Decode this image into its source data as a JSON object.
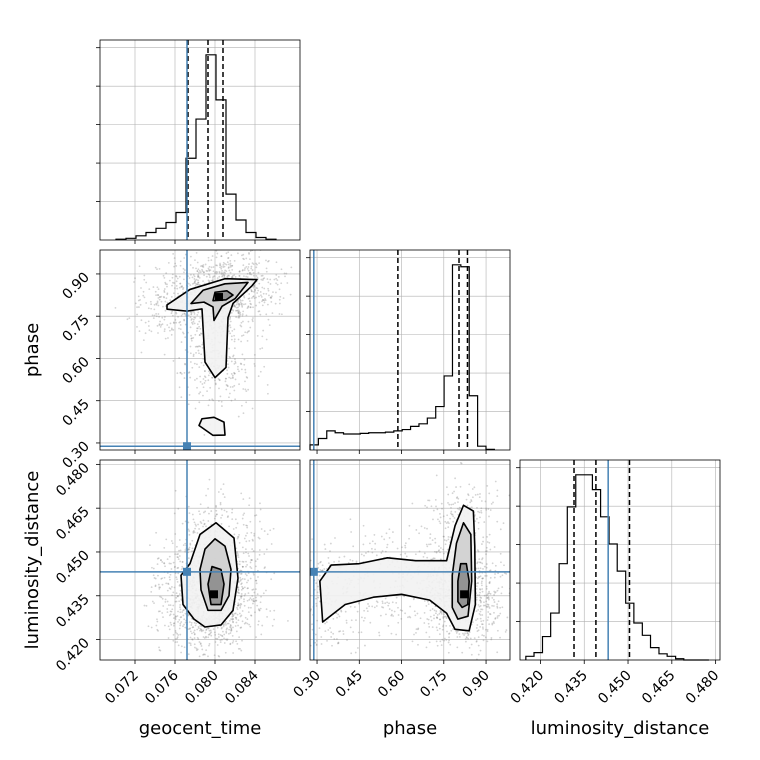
{
  "colors": {
    "truth": "#4682b4",
    "hist": "#000000",
    "grid": "#b0b0b0",
    "scatter": "#808080"
  },
  "chart_data": {
    "type": "corner",
    "grid": true,
    "parameters": [
      {
        "key": "geocent_time",
        "label": "geocent_time",
        "range": [
          0.0685,
          0.0885
        ],
        "ticks": [
          "0.072",
          "0.076",
          "0.080",
          "0.084"
        ],
        "truth": 0.0772,
        "quantiles": [
          0.0773,
          0.0793,
          0.0808
        ]
      },
      {
        "key": "phase",
        "label": "phase",
        "range": [
          0.275,
          0.985
        ],
        "ticks": [
          "0.30",
          "0.45",
          "0.60",
          "0.75",
          "0.90"
        ],
        "truth": 0.2885,
        "quantiles": [
          0.587,
          0.804,
          0.834
        ]
      },
      {
        "key": "luminosity_distance",
        "label": "luminosity_distance",
        "range": [
          0.413,
          0.4815
        ],
        "ticks": [
          "0.420",
          "0.435",
          "0.450",
          "0.465",
          "0.480"
        ],
        "truth": 0.4432,
        "quantiles": [
          0.4315,
          0.439,
          0.4505
        ]
      }
    ],
    "histograms": [
      {
        "param": "geocent_time",
        "edges": [
          0.0701,
          0.0711,
          0.0721,
          0.0731,
          0.0741,
          0.0751,
          0.0761,
          0.0771,
          0.0781,
          0.0791,
          0.0801,
          0.0811,
          0.0821,
          0.0831,
          0.0841,
          0.0851,
          0.0861
        ],
        "counts": [
          1,
          2,
          5,
          9,
          14,
          21,
          33,
          98,
          145,
          222,
          168,
          55,
          24,
          9,
          3,
          1
        ]
      },
      {
        "param": "phase",
        "edges": [
          0.275,
          0.3048,
          0.3345,
          0.3643,
          0.394,
          0.4238,
          0.4535,
          0.4833,
          0.513,
          0.5428,
          0.5725,
          0.6023,
          0.632,
          0.6618,
          0.6915,
          0.7213,
          0.751,
          0.7808,
          0.8105,
          0.8403,
          0.87,
          0.8998,
          0.9295
        ],
        "counts": [
          8,
          18,
          30,
          27,
          25,
          25,
          26,
          27,
          27,
          28,
          30,
          32,
          37,
          41,
          50,
          68,
          116,
          290,
          287,
          85,
          6,
          1
        ]
      },
      {
        "param": "luminosity_distance",
        "edges": [
          0.415,
          0.4178,
          0.4207,
          0.4235,
          0.4264,
          0.4292,
          0.4321,
          0.4349,
          0.4378,
          0.4406,
          0.4435,
          0.4463,
          0.4492,
          0.452,
          0.4549,
          0.4577,
          0.4606,
          0.4634,
          0.4663,
          0.4691,
          0.472,
          0.4748,
          0.4777
        ],
        "counts": [
          3,
          6,
          19,
          38,
          78,
          124,
          150,
          150,
          138,
          116,
          94,
          72,
          46,
          30,
          20,
          10,
          5,
          3,
          1,
          0,
          0,
          0
        ]
      }
    ],
    "pairs": [
      {
        "x": "geocent_time",
        "y": "phase",
        "truth_marker": [
          0.0772,
          0.2885
        ],
        "peak": [
          0.0804,
          0.818
        ],
        "contours": [
          [
            [
              0.0784,
              0.362
            ],
            [
              0.0798,
              0.327
            ],
            [
              0.081,
              0.328
            ],
            [
              0.0809,
              0.374
            ],
            [
              0.0799,
              0.391
            ],
            [
              0.0787,
              0.386
            ]
          ],
          [
            [
              0.0752,
              0.79
            ],
            [
              0.0775,
              0.845
            ],
            [
              0.081,
              0.883
            ],
            [
              0.0842,
              0.88
            ],
            [
              0.0837,
              0.858
            ],
            [
              0.0818,
              0.795
            ],
            [
              0.0813,
              0.745
            ],
            [
              0.0811,
              0.568
            ],
            [
              0.08,
              0.532
            ],
            [
              0.079,
              0.587
            ],
            [
              0.0787,
              0.776
            ],
            [
              0.0772,
              0.768
            ],
            [
              0.0752,
              0.775
            ]
          ],
          [
            [
              0.0776,
              0.795
            ],
            [
              0.0788,
              0.842
            ],
            [
              0.081,
              0.865
            ],
            [
              0.0833,
              0.87
            ],
            [
              0.082,
              0.812
            ],
            [
              0.0807,
              0.785
            ],
            [
              0.0799,
              0.735
            ],
            [
              0.0798,
              0.783
            ],
            [
              0.0789,
              0.8
            ]
          ],
          [
            [
              0.0798,
              0.805
            ],
            [
              0.08,
              0.835
            ],
            [
              0.0812,
              0.84
            ],
            [
              0.0818,
              0.825
            ],
            [
              0.0811,
              0.808
            ]
          ]
        ]
      },
      {
        "x": "geocent_time",
        "y": "luminosity_distance",
        "truth_marker": [
          0.0772,
          0.4432
        ],
        "peak": [
          0.0799,
          0.4355
        ],
        "contours": [
          [
            [
              0.079,
              0.4243
            ],
            [
              0.0806,
              0.425
            ],
            [
              0.0818,
              0.43
            ],
            [
              0.0823,
              0.441
            ],
            [
              0.0819,
              0.4548
            ],
            [
              0.0801,
              0.46
            ],
            [
              0.0785,
              0.456
            ],
            [
              0.0775,
              0.446
            ],
            [
              0.0766,
              0.442
            ],
            [
              0.0768,
              0.432
            ],
            [
              0.0779,
              0.427
            ]
          ],
          [
            [
              0.0793,
              0.43
            ],
            [
              0.0806,
              0.43
            ],
            [
              0.0814,
              0.435
            ],
            [
              0.0816,
              0.444
            ],
            [
              0.081,
              0.452
            ],
            [
              0.08,
              0.4545
            ],
            [
              0.079,
              0.451
            ],
            [
              0.0785,
              0.444
            ],
            [
              0.0786,
              0.437
            ]
          ],
          [
            [
              0.0796,
              0.432
            ],
            [
              0.0806,
              0.432
            ],
            [
              0.0809,
              0.439
            ],
            [
              0.0806,
              0.444
            ],
            [
              0.0797,
              0.445
            ],
            [
              0.0793,
              0.439
            ]
          ]
        ]
      },
      {
        "x": "phase",
        "y": "luminosity_distance",
        "truth_marker": [
          0.2885,
          0.4432
        ],
        "peak": [
          0.822,
          0.4355
        ],
        "contours": [
          [
            [
              0.32,
              0.426
            ],
            [
              0.4,
              0.432
            ],
            [
              0.5,
              0.4345
            ],
            [
              0.6,
              0.4355
            ],
            [
              0.7,
              0.4335
            ],
            [
              0.76,
              0.429
            ],
            [
              0.79,
              0.4235
            ],
            [
              0.84,
              0.423
            ],
            [
              0.862,
              0.432
            ],
            [
              0.86,
              0.452
            ],
            [
              0.855,
              0.464
            ],
            [
              0.82,
              0.466
            ],
            [
              0.79,
              0.459
            ],
            [
              0.76,
              0.447
            ],
            [
              0.65,
              0.447
            ],
            [
              0.55,
              0.448
            ],
            [
              0.45,
              0.446
            ],
            [
              0.35,
              0.4455
            ],
            [
              0.31,
              0.44
            ]
          ],
          [
            [
              0.78,
              0.431
            ],
            [
              0.8,
              0.427
            ],
            [
              0.836,
              0.428
            ],
            [
              0.849,
              0.44
            ],
            [
              0.846,
              0.456
            ],
            [
              0.82,
              0.46
            ],
            [
              0.795,
              0.453
            ],
            [
              0.78,
              0.442
            ]
          ],
          [
            [
              0.8,
              0.433
            ],
            [
              0.815,
              0.431
            ],
            [
              0.835,
              0.432
            ],
            [
              0.84,
              0.44
            ],
            [
              0.83,
              0.446
            ],
            [
              0.81,
              0.446
            ],
            [
              0.8,
              0.44
            ]
          ]
        ]
      }
    ],
    "scatter_note": "grey point cloud behind contours"
  }
}
